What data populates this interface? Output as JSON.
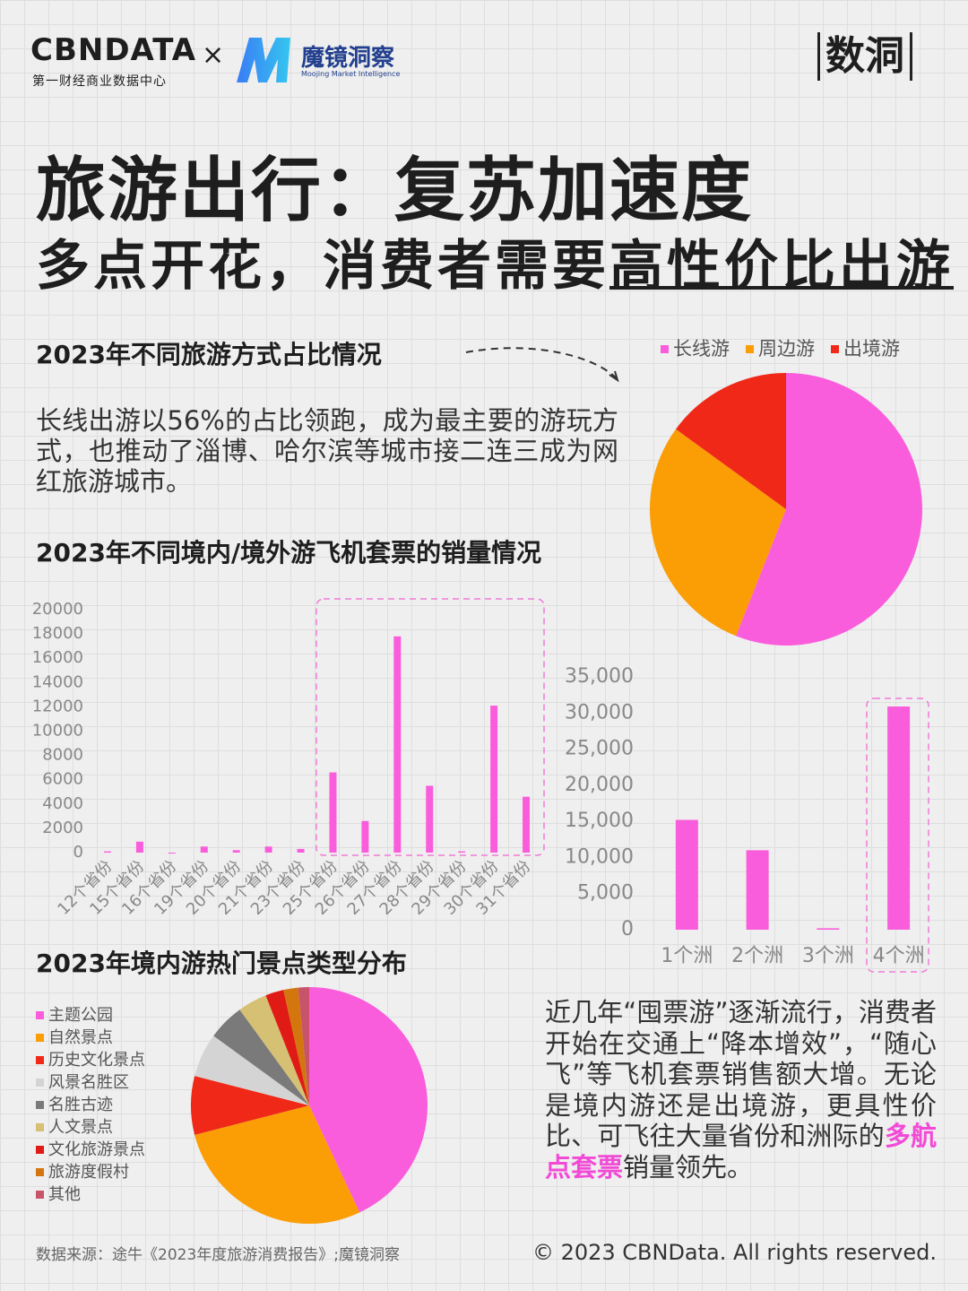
{
  "header": {
    "logo_cbn": "CBNDATA",
    "logo_cbn_sub": "第一财经商业数据中心",
    "times": "×",
    "logo_mj": "魔镜洞察",
    "logo_mj_sub": "Moojing Market Intelligence",
    "brand": "数洞"
  },
  "title": "旅游出行：复苏加速度",
  "subtitle": {
    "plain": "多点开花，消费者需要",
    "underlined": "高性价比出游"
  },
  "paragraph_1": "长线出游以56%的占比领跑，成为最主要的游玩方式，也推动了淄博、哈尔滨等城市接二连三成为网红旅游城市。",
  "paragraph_2": {
    "before": "近几年“囤票游”逐渐流行，消费者开始在交通上“降本增效”，“随心飞”等飞机套票销售额大增。无论是境内游还是出境游，更具性价比、可飞往大量省份和洲际的",
    "highlight": "多航点套票",
    "after": "销量领先。"
  },
  "footer": {
    "source": "数据来源：途牛《2023年度旅游消费报告》;魔镜洞察",
    "copyright": "© 2023 CBNData. All rights reserved."
  },
  "chart_data": [
    {
      "type": "pie",
      "title": "2023年不同旅游方式占比情况",
      "categories": [
        "长线游",
        "周边游",
        "出境游"
      ],
      "values": [
        56,
        29,
        15
      ],
      "colors": [
        "#fa5ddc",
        "#fb9d05",
        "#f02818"
      ],
      "legend": "top"
    },
    {
      "type": "bar",
      "title": "2023年不同境内/境外游飞机套票的销量情况",
      "categories": [
        "12个省份",
        "15个省份",
        "16个省份",
        "19个省份",
        "20个省份",
        "21个省份",
        "23个省份",
        "25个省份",
        "26个省份",
        "27个省份",
        "28个省份",
        "29个省份",
        "30个省份",
        "31个省份"
      ],
      "values": [
        100,
        900,
        0,
        500,
        200,
        500,
        300,
        6600,
        2600,
        17800,
        5500,
        100,
        12100,
        4600
      ],
      "color": "#fa5ddc",
      "ylim": [
        0,
        20000
      ],
      "yticks": [
        0,
        2000,
        4000,
        6000,
        8000,
        10000,
        12000,
        14000,
        16000,
        18000,
        20000
      ]
    },
    {
      "type": "bar",
      "categories": [
        "1个洲",
        "2个洲",
        "3个洲",
        "4个洲"
      ],
      "values": [
        15200,
        11000,
        200,
        30900
      ],
      "color": "#fa5ddc",
      "ylim": [
        0,
        35000
      ],
      "yticks": [
        0,
        {
          "value": 5000,
          "label": "5,000"
        },
        {
          "value": 10000,
          "label": "10,000"
        },
        {
          "value": 15000,
          "label": "15,000"
        },
        {
          "value": 20000,
          "label": "20,000"
        },
        {
          "value": 25000,
          "label": "25,000"
        },
        {
          "value": 30000,
          "label": "30,000"
        },
        {
          "value": 35000,
          "label": "35,000"
        }
      ]
    },
    {
      "type": "pie",
      "title": "2023年境内游热门景点类型分布",
      "categories": [
        "主题公园",
        "自然景点",
        "历史文化景点",
        "风景名胜区",
        "名胜古迹",
        "人文景点",
        "文化旅游景点",
        "旅游度假村",
        "其他"
      ],
      "values": [
        43,
        28,
        8,
        6,
        5,
        4,
        2.5,
        2,
        1.5
      ],
      "colors": [
        "#fa5ddc",
        "#fb9d05",
        "#f02818",
        "#d4d4d4",
        "#7a7a7a",
        "#d6c074",
        "#e01a14",
        "#d4760e",
        "#c75469"
      ],
      "legend": "left"
    }
  ]
}
